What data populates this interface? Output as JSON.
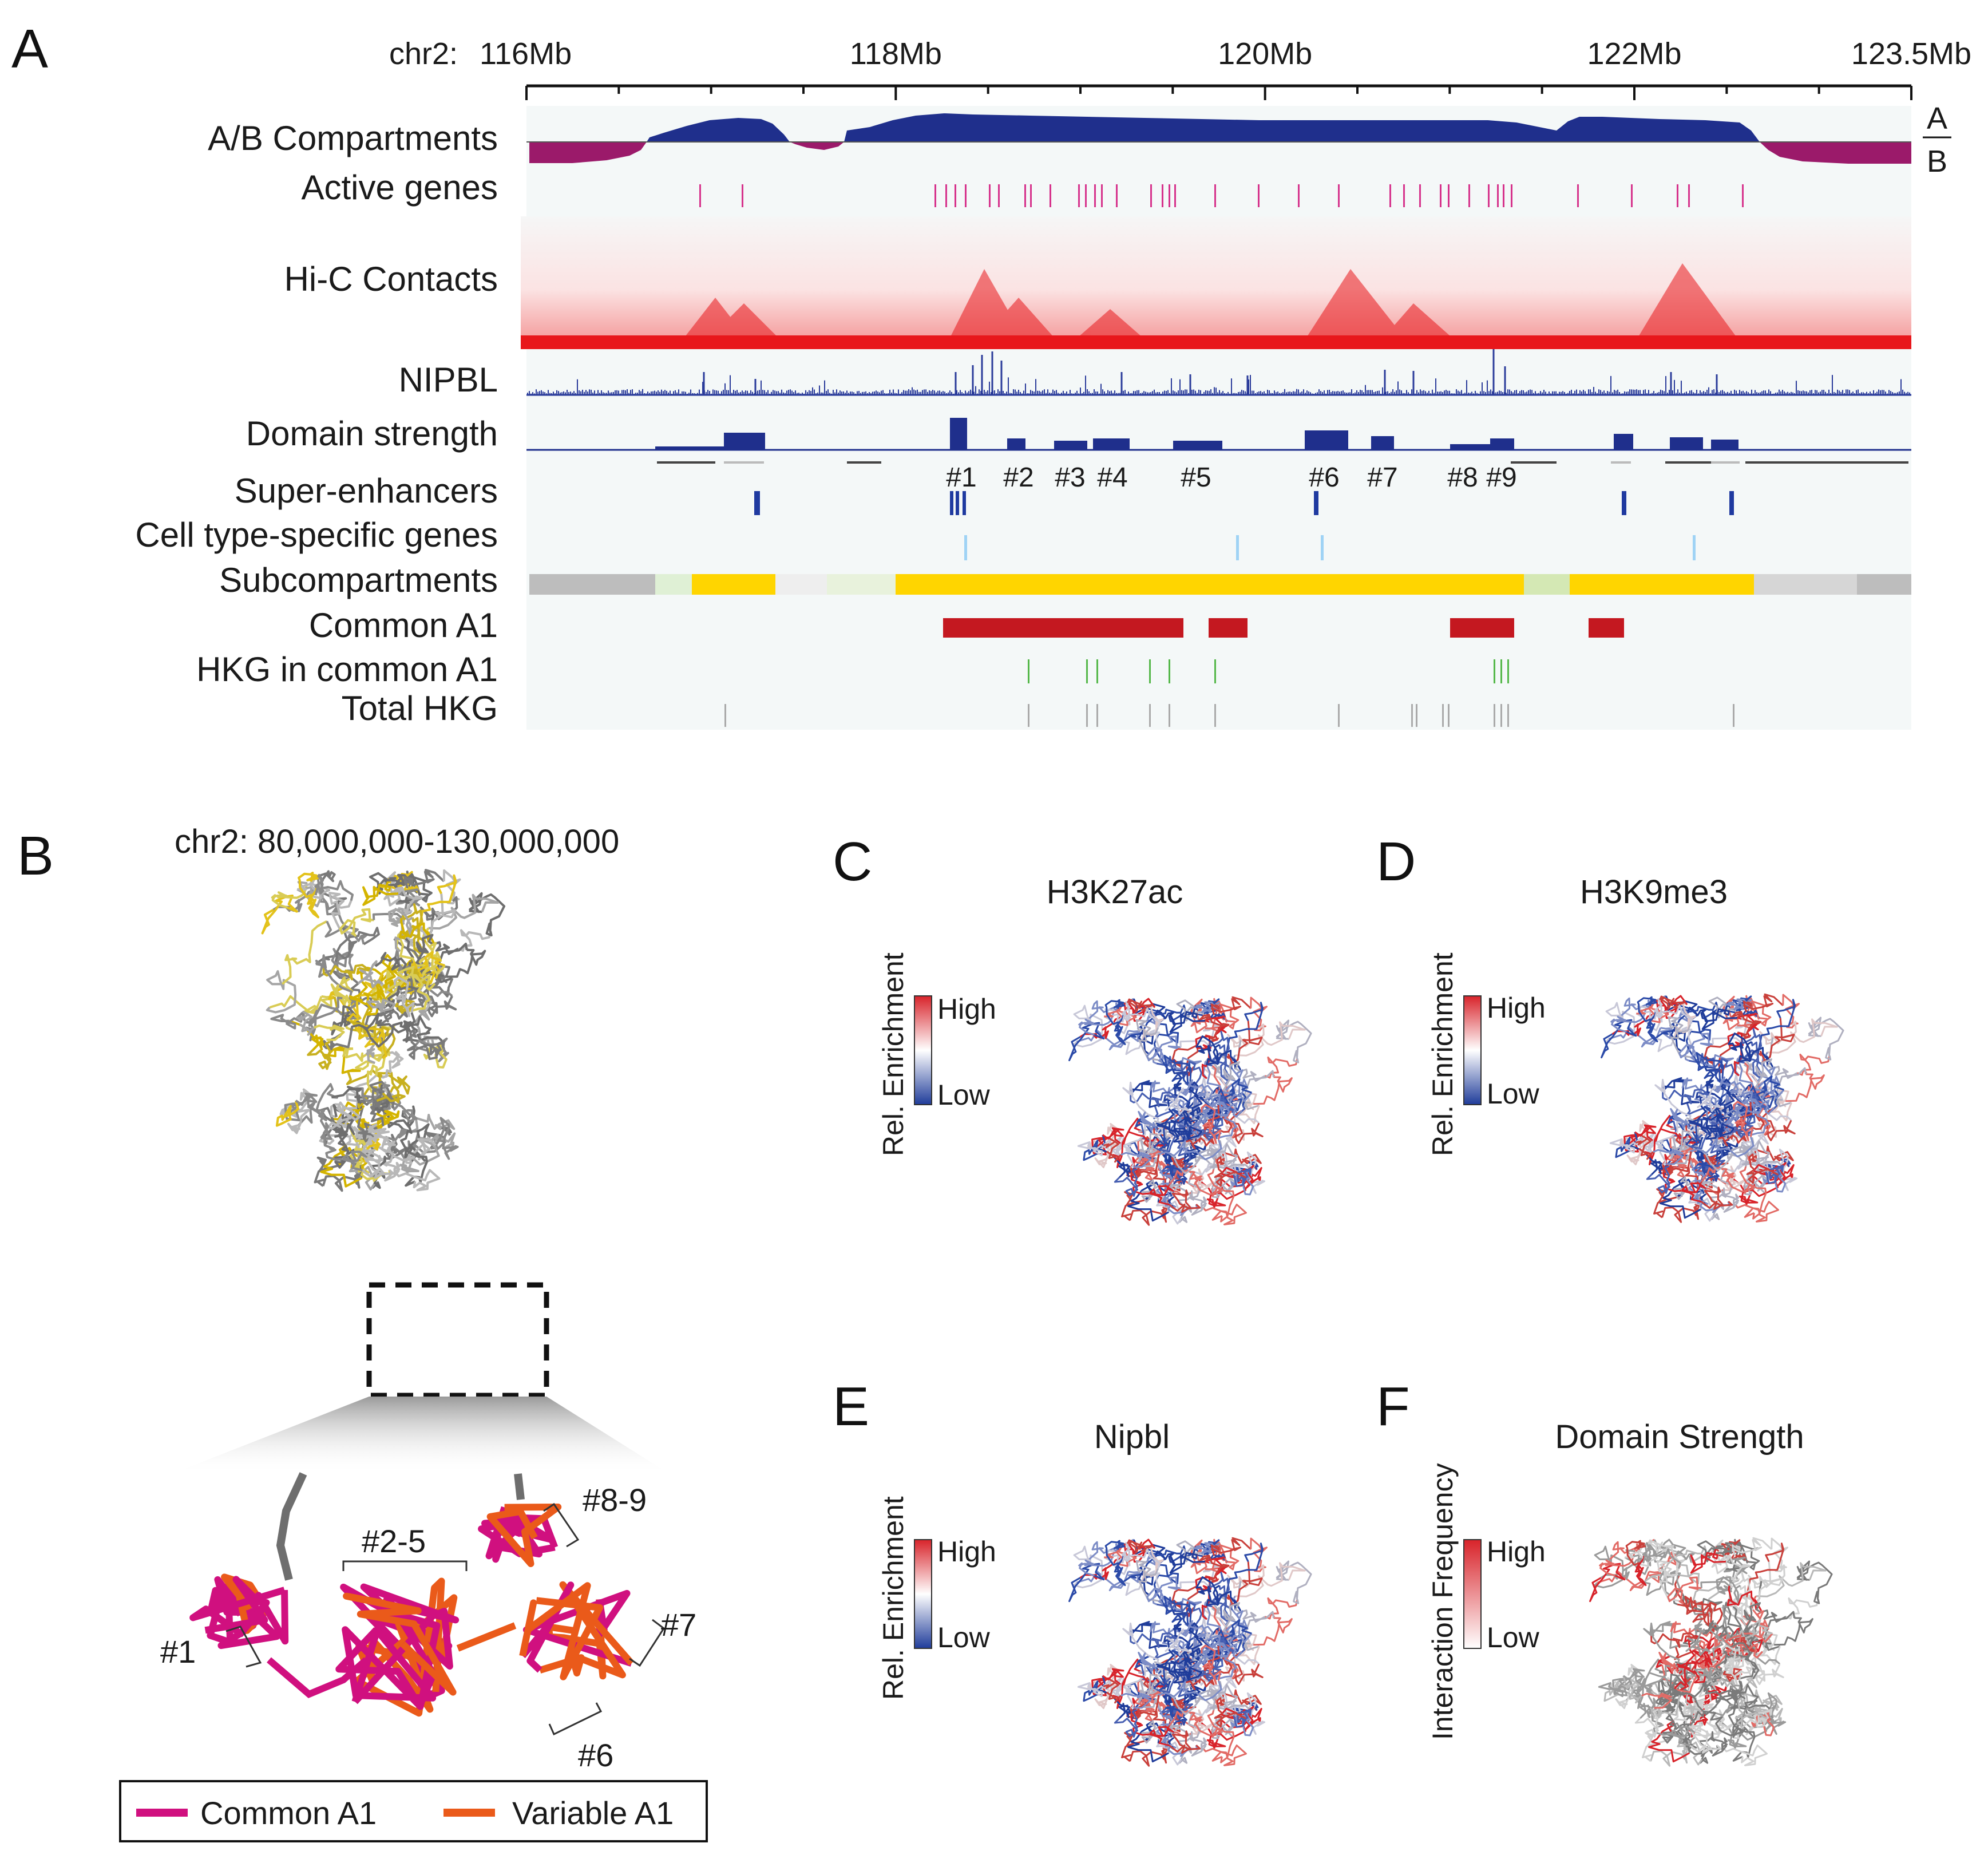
{
  "panels": {
    "A": {
      "letter": "A",
      "axis": {
        "chrom_label": "chr2:",
        "range_mb": [
          116,
          123.5
        ],
        "ticks": [
          {
            "mb": 116,
            "label": "116Mb"
          },
          {
            "mb": 118,
            "label": "118Mb"
          },
          {
            "mb": 120,
            "label": "120Mb"
          },
          {
            "mb": 122,
            "label": "122Mb"
          },
          {
            "mb": 123.5,
            "label": "123.5Mb"
          }
        ]
      },
      "track_labels": {
        "ab": "A/B Compartments",
        "active_genes": "Active genes",
        "hic": "Hi-C Contacts",
        "nipbl": "NIPBL",
        "domain_strength": "Domain strength",
        "super_enhancers": "Super-enhancers",
        "cell_type_genes": "Cell type-specific genes",
        "subcompartments": "Subcompartments",
        "common_a1": "Common A1",
        "hkg_common_a1": "HKG in common A1",
        "total_hkg": "Total HKG"
      },
      "ab_legend": {
        "top": "A",
        "bottom": "B"
      },
      "domain_numbers": [
        "#1",
        "#2",
        "#3",
        "#4",
        "#5",
        "#6",
        "#7",
        "#8",
        "#9"
      ],
      "colors": {
        "a_comp": "#1f2f8c",
        "b_comp": "#9b1a6a",
        "active_gene": "#d6338c",
        "hic": "#e8171b",
        "nipbl": "#2a3b9a",
        "domain": "#1f2f8c",
        "super_enh": "#1f3aa0",
        "cell_gene": "#9fd3f5",
        "common_a1": "#c41820",
        "hkg": "#55b84a",
        "total_hkg": "#aaaaaa",
        "track_bg": "#f4f8f8"
      }
    },
    "B": {
      "letter": "B",
      "title": "chr2: 80,000,000-130,000,000",
      "zoom_labels": [
        "#1",
        "#2-5",
        "#8-9",
        "#7",
        "#6"
      ],
      "legend": [
        {
          "label": "Common A1",
          "color": "#d0107f"
        },
        {
          "label": "Variable A1",
          "color": "#ea5a1a"
        }
      ]
    },
    "C": {
      "letter": "C",
      "title": "H3K27ac",
      "colorbar_label": "Rel. Enrichment",
      "high": "High",
      "low": "Low"
    },
    "D": {
      "letter": "D",
      "title": "H3K9me3",
      "colorbar_label": "Rel. Enrichment",
      "high": "High",
      "low": "Low"
    },
    "E": {
      "letter": "E",
      "title": "Nipbl",
      "colorbar_label": "Rel. Enrichment",
      "high": "High",
      "low": "Low"
    },
    "F": {
      "letter": "F",
      "title": "Domain Strength",
      "colorbar_label": "Interaction Frequency",
      "high": "High",
      "low": "Low"
    }
  }
}
